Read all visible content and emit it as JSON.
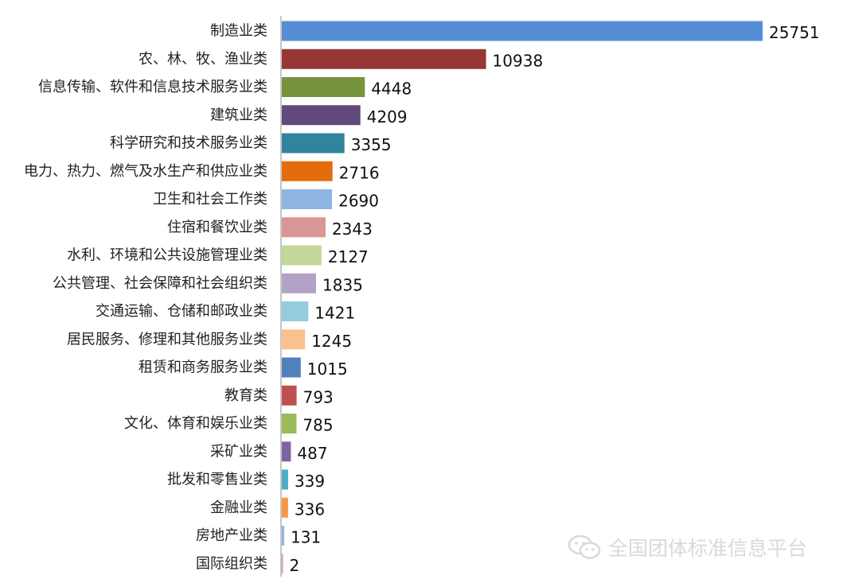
{
  "chart_data": {
    "type": "bar",
    "orientation": "horizontal",
    "categories": [
      "制造业类",
      "农、林、牧、渔业类",
      "信息传输、软件和信息技术服务业类",
      "建筑业类",
      "科学研究和技术服务业类",
      "电力、热力、燃气及水生产和供应业类",
      "卫生和社会工作类",
      "住宿和餐饮业类",
      "水利、环境和公共设施管理业类",
      "公共管理、社会保障和社会组织类",
      "交通运输、仓储和邮政业类",
      "居民服务、修理和其他服务业类",
      "租赁和商务服务业类",
      "教育类",
      "文化、体育和娱乐业类",
      "采矿业类",
      "批发和零售业类",
      "金融业类",
      "房地产业类",
      "国际组织类"
    ],
    "values": [
      25751,
      10938,
      4448,
      4209,
      3355,
      2716,
      2690,
      2343,
      2127,
      1835,
      1421,
      1245,
      1015,
      793,
      785,
      487,
      339,
      336,
      131,
      2
    ],
    "colors": [
      "#558ed5",
      "#953735",
      "#77933c",
      "#604a7b",
      "#31849b",
      "#e46c0a",
      "#8eb4e3",
      "#d99694",
      "#c3d69b",
      "#b3a2c7",
      "#93cddd",
      "#fac090",
      "#4f81bd",
      "#c0504d",
      "#9bbb59",
      "#8064a2",
      "#4bacc6",
      "#f79646",
      "#95b3d7",
      "#d99694"
    ],
    "xlim": [
      0,
      25751
    ],
    "grid": false,
    "legend": "none",
    "title": "",
    "xlabel": "",
    "ylabel": ""
  },
  "watermark": {
    "icon": "wechat-icon",
    "text": "全国团体标准信息平台"
  }
}
